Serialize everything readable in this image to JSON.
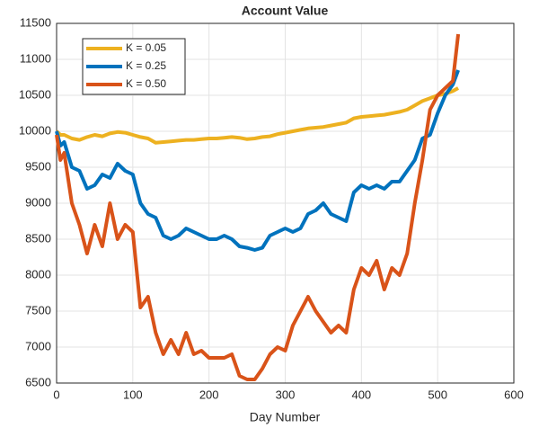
{
  "chart_data": {
    "type": "line",
    "title": "Account Value",
    "x_label": "Day Number",
    "x": [
      0,
      5,
      10,
      20,
      30,
      40,
      50,
      60,
      70,
      80,
      90,
      100,
      110,
      120,
      130,
      140,
      150,
      160,
      170,
      180,
      190,
      200,
      210,
      220,
      230,
      240,
      250,
      260,
      270,
      280,
      290,
      300,
      310,
      320,
      330,
      340,
      350,
      360,
      370,
      380,
      390,
      400,
      410,
      420,
      430,
      440,
      450,
      460,
      470,
      480,
      490,
      500,
      510,
      520,
      527
    ],
    "series": [
      {
        "name": "K = 0.05",
        "color": "#EDB120",
        "values": [
          10000,
          9950,
          9950,
          9900,
          9880,
          9920,
          9950,
          9930,
          9970,
          9990,
          9980,
          9950,
          9920,
          9900,
          9840,
          9850,
          9860,
          9870,
          9880,
          9880,
          9890,
          9900,
          9900,
          9910,
          9920,
          9910,
          9890,
          9900,
          9920,
          9930,
          9960,
          9980,
          10000,
          10020,
          10040,
          10050,
          10060,
          10080,
          10100,
          10120,
          10180,
          10200,
          10210,
          10220,
          10230,
          10250,
          10270,
          10300,
          10360,
          10420,
          10460,
          10500,
          10520,
          10560,
          10600
        ]
      },
      {
        "name": "K = 0.25",
        "color": "#0072BD",
        "values": [
          10000,
          9800,
          9850,
          9500,
          9450,
          9200,
          9250,
          9400,
          9350,
          9550,
          9450,
          9400,
          9000,
          8850,
          8800,
          8550,
          8500,
          8550,
          8650,
          8600,
          8550,
          8500,
          8500,
          8550,
          8500,
          8400,
          8380,
          8350,
          8380,
          8550,
          8600,
          8650,
          8600,
          8650,
          8850,
          8900,
          9000,
          8850,
          8800,
          8750,
          9150,
          9250,
          9200,
          9250,
          9200,
          9300,
          9300,
          9450,
          9600,
          9900,
          9950,
          10250,
          10500,
          10650,
          10850
        ]
      },
      {
        "name": "K = 0.50",
        "color": "#D95319",
        "values": [
          9950,
          9600,
          9700,
          9000,
          8700,
          8300,
          8700,
          8400,
          9000,
          8500,
          8700,
          8600,
          7550,
          7700,
          7200,
          6900,
          7100,
          6900,
          7200,
          6900,
          6950,
          6850,
          6850,
          6850,
          6900,
          6600,
          6550,
          6550,
          6700,
          6900,
          7000,
          6950,
          7300,
          7500,
          7700,
          7500,
          7350,
          7200,
          7300,
          7200,
          7800,
          8100,
          8000,
          8200,
          7800,
          8100,
          8000,
          8300,
          9000,
          9600,
          10300,
          10500,
          10600,
          10700,
          11350
        ]
      }
    ],
    "xlim": [
      0,
      600
    ],
    "xticks": [
      0,
      100,
      200,
      300,
      400,
      500,
      600
    ],
    "ylim": [
      6500,
      11500
    ],
    "yticks": [
      6500,
      7000,
      7500,
      8000,
      8500,
      9000,
      9500,
      10000,
      10500,
      11000,
      11500
    ],
    "grid": true,
    "legend": "upper left"
  }
}
